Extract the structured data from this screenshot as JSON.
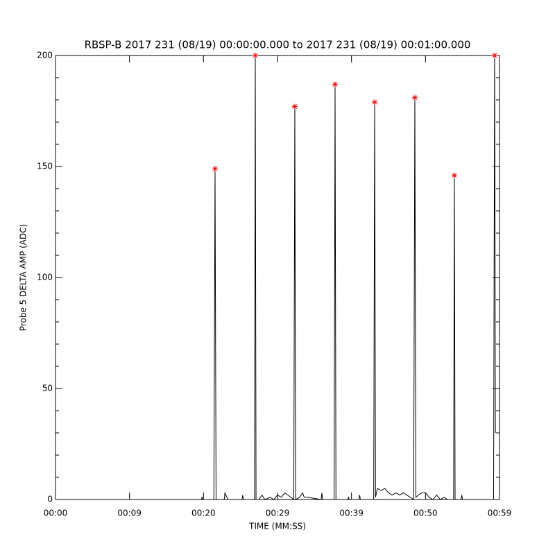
{
  "chart_data": {
    "type": "line",
    "title": "RBSP-B 2017 231 (08/19) 00:00:00.000 to 2017 231 (08/19) 00:01:00.000",
    "xlabel": "TIME (MM:SS)",
    "ylabel": "Probe 5 DELTA AMP (ADC)",
    "xlim": [
      0,
      60
    ],
    "ylim": [
      0,
      200
    ],
    "xticks": [
      {
        "value": 0,
        "label": "00:00"
      },
      {
        "value": 10,
        "label": "00:09"
      },
      {
        "value": 20,
        "label": "00:20"
      },
      {
        "value": 30,
        "label": "00:29"
      },
      {
        "value": 40,
        "label": "00:39"
      },
      {
        "value": 50,
        "label": "00:50"
      },
      {
        "value": 60,
        "label": "00:59"
      }
    ],
    "yticks": [
      0,
      50,
      100,
      150,
      200
    ],
    "yminorticks": [
      10,
      20,
      30,
      40,
      60,
      70,
      80,
      90,
      110,
      120,
      130,
      140,
      160,
      170,
      180,
      190
    ],
    "series": [
      {
        "style": "line",
        "color": "#000000",
        "x": [
          0,
          19.7,
          19.8,
          19.9,
          21.4,
          21.56,
          21.7,
          22.8,
          22.9,
          23.3,
          25.2,
          25.3,
          25.4,
          26.9,
          27.0,
          27.1,
          27.5,
          27.9,
          28.3,
          29.0,
          29.5,
          30.0,
          30.5,
          31.0,
          32.2,
          32.34,
          32.45,
          33.0,
          33.4,
          33.6,
          34.0,
          35.9,
          36.0,
          36.1,
          37.65,
          37.78,
          37.9,
          39.5,
          39.6,
          39.7,
          41.0,
          41.1,
          41.2,
          43.0,
          43.13,
          43.25,
          43.5,
          44.0,
          44.5,
          45.0,
          45.5,
          46.0,
          46.5,
          47.0,
          48.4,
          48.56,
          48.7,
          49.0,
          49.5,
          50.0,
          50.5,
          51.0,
          51.5,
          52.0,
          52.5,
          53.0,
          53.8,
          53.9,
          54.0,
          54.8,
          54.9,
          55.0,
          59.2,
          59.34,
          59.45
        ],
        "values": [
          0,
          0,
          1,
          0,
          0,
          149,
          0,
          0,
          3,
          0,
          0,
          2,
          0,
          0,
          200,
          0,
          0,
          2,
          0,
          1,
          0,
          2,
          1,
          3,
          0,
          177,
          0,
          1,
          3,
          1,
          1,
          0,
          3,
          0,
          0,
          187,
          0,
          0,
          1,
          0,
          0,
          2,
          0,
          0,
          179,
          1,
          5,
          4,
          5,
          3,
          2,
          3,
          2,
          3,
          0,
          181,
          1,
          2,
          3,
          3,
          1,
          0,
          2,
          0,
          1,
          0,
          0,
          146,
          0,
          0,
          2,
          0,
          0,
          200,
          30
        ]
      },
      {
        "style": "marker",
        "color": "#ff0000",
        "x": [
          21.56,
          27.0,
          32.34,
          37.78,
          43.13,
          48.56,
          53.9,
          59.34
        ],
        "values": [
          149,
          200,
          177,
          187,
          179,
          181,
          146,
          200
        ]
      }
    ]
  }
}
